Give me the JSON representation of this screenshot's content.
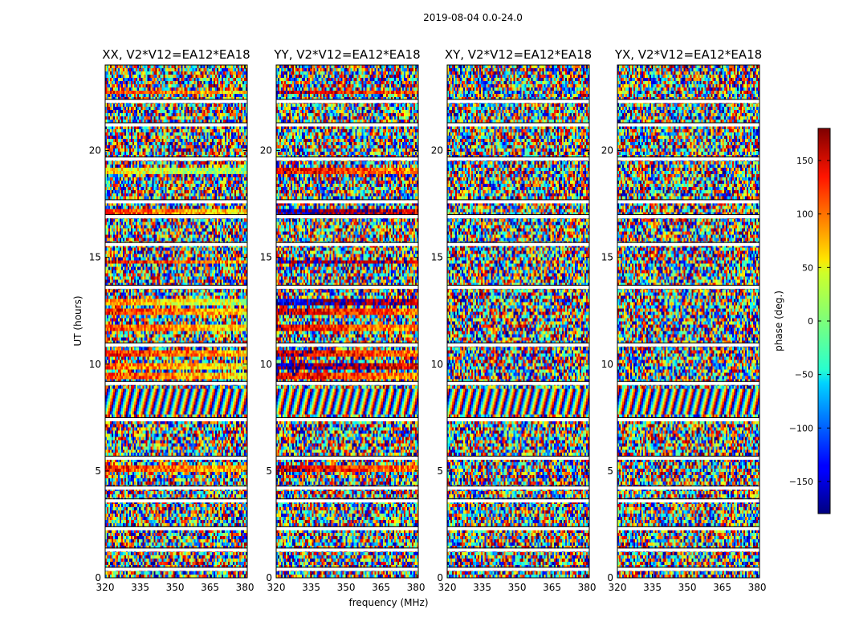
{
  "chart_data": {
    "type": "heatmap",
    "suptitle": "2019-08-04 0.0-24.0",
    "xlabel": "frequency (MHz)",
    "ylabel": "UT (hours)",
    "xlim": [
      320,
      381
    ],
    "ylim": [
      0,
      24
    ],
    "x_ticks": [
      320,
      335,
      350,
      365,
      380
    ],
    "y_ticks": [
      0,
      5,
      10,
      15,
      20
    ],
    "panels": [
      {
        "title": "XX, V2*V12=EA12*EA18",
        "pol": "XX"
      },
      {
        "title": "YY, V2*V12=EA12*EA18",
        "pol": "YY"
      },
      {
        "title": "XY, V2*V12=EA12*EA18",
        "pol": "XY"
      },
      {
        "title": "YX, V2*V12=EA12*EA18",
        "pol": "YX"
      }
    ],
    "colorbar": {
      "label": "phase (deg.)",
      "range": [
        -180,
        180
      ],
      "ticks": [
        -150,
        -100,
        -50,
        0,
        50,
        100,
        150
      ],
      "tick_labels": [
        "−150",
        "−100",
        "−50",
        "0",
        "50",
        "100",
        "150"
      ],
      "colormap": "jet"
    },
    "coherent_phase_bands": [
      {
        "ut_start": 5.0,
        "ut_end": 5.3,
        "XX_phase": 130,
        "YY_phase": 160
      },
      {
        "ut_start": 9.3,
        "ut_end": 9.6,
        "XX_phase": 120,
        "YY_phase": 150
      },
      {
        "ut_start": 9.8,
        "ut_end": 10.1,
        "XX_phase": 110,
        "YY_phase": -160
      },
      {
        "ut_start": 10.4,
        "ut_end": 10.7,
        "XX_phase": 135,
        "YY_phase": 160
      },
      {
        "ut_start": 11.5,
        "ut_end": 11.8,
        "XX_phase": 120,
        "YY_phase": 150
      },
      {
        "ut_start": 12.3,
        "ut_end": 12.6,
        "XX_phase": 130,
        "YY_phase": 160
      },
      {
        "ut_start": 12.8,
        "ut_end": 13.0,
        "XX_phase": 90,
        "YY_phase": -140
      },
      {
        "ut_start": 14.7,
        "ut_end": 14.9,
        "XX_phase": 140,
        "YY_phase": -150
      },
      {
        "ut_start": 17.0,
        "ut_end": 17.2,
        "XX_phase": 120,
        "YY_phase": -150
      },
      {
        "ut_start": 18.9,
        "ut_end": 19.2,
        "XX_phase": 60,
        "YY_phase": 150
      },
      {
        "ut_start": 22.6,
        "ut_end": 22.8,
        "XX_phase": 130,
        "YY_phase": 170
      }
    ],
    "fringe_band": {
      "ut_start": 7.6,
      "ut_end": 8.9,
      "description": "phase wraps rapidly across frequency"
    },
    "flagged_gaps_ut": [
      0.4,
      1.3,
      2.3,
      3.6,
      4.2,
      5.6,
      7.4,
      9.1,
      10.9,
      13.6,
      15.6,
      16.9,
      17.6,
      19.6,
      21.2,
      22.3
    ]
  }
}
